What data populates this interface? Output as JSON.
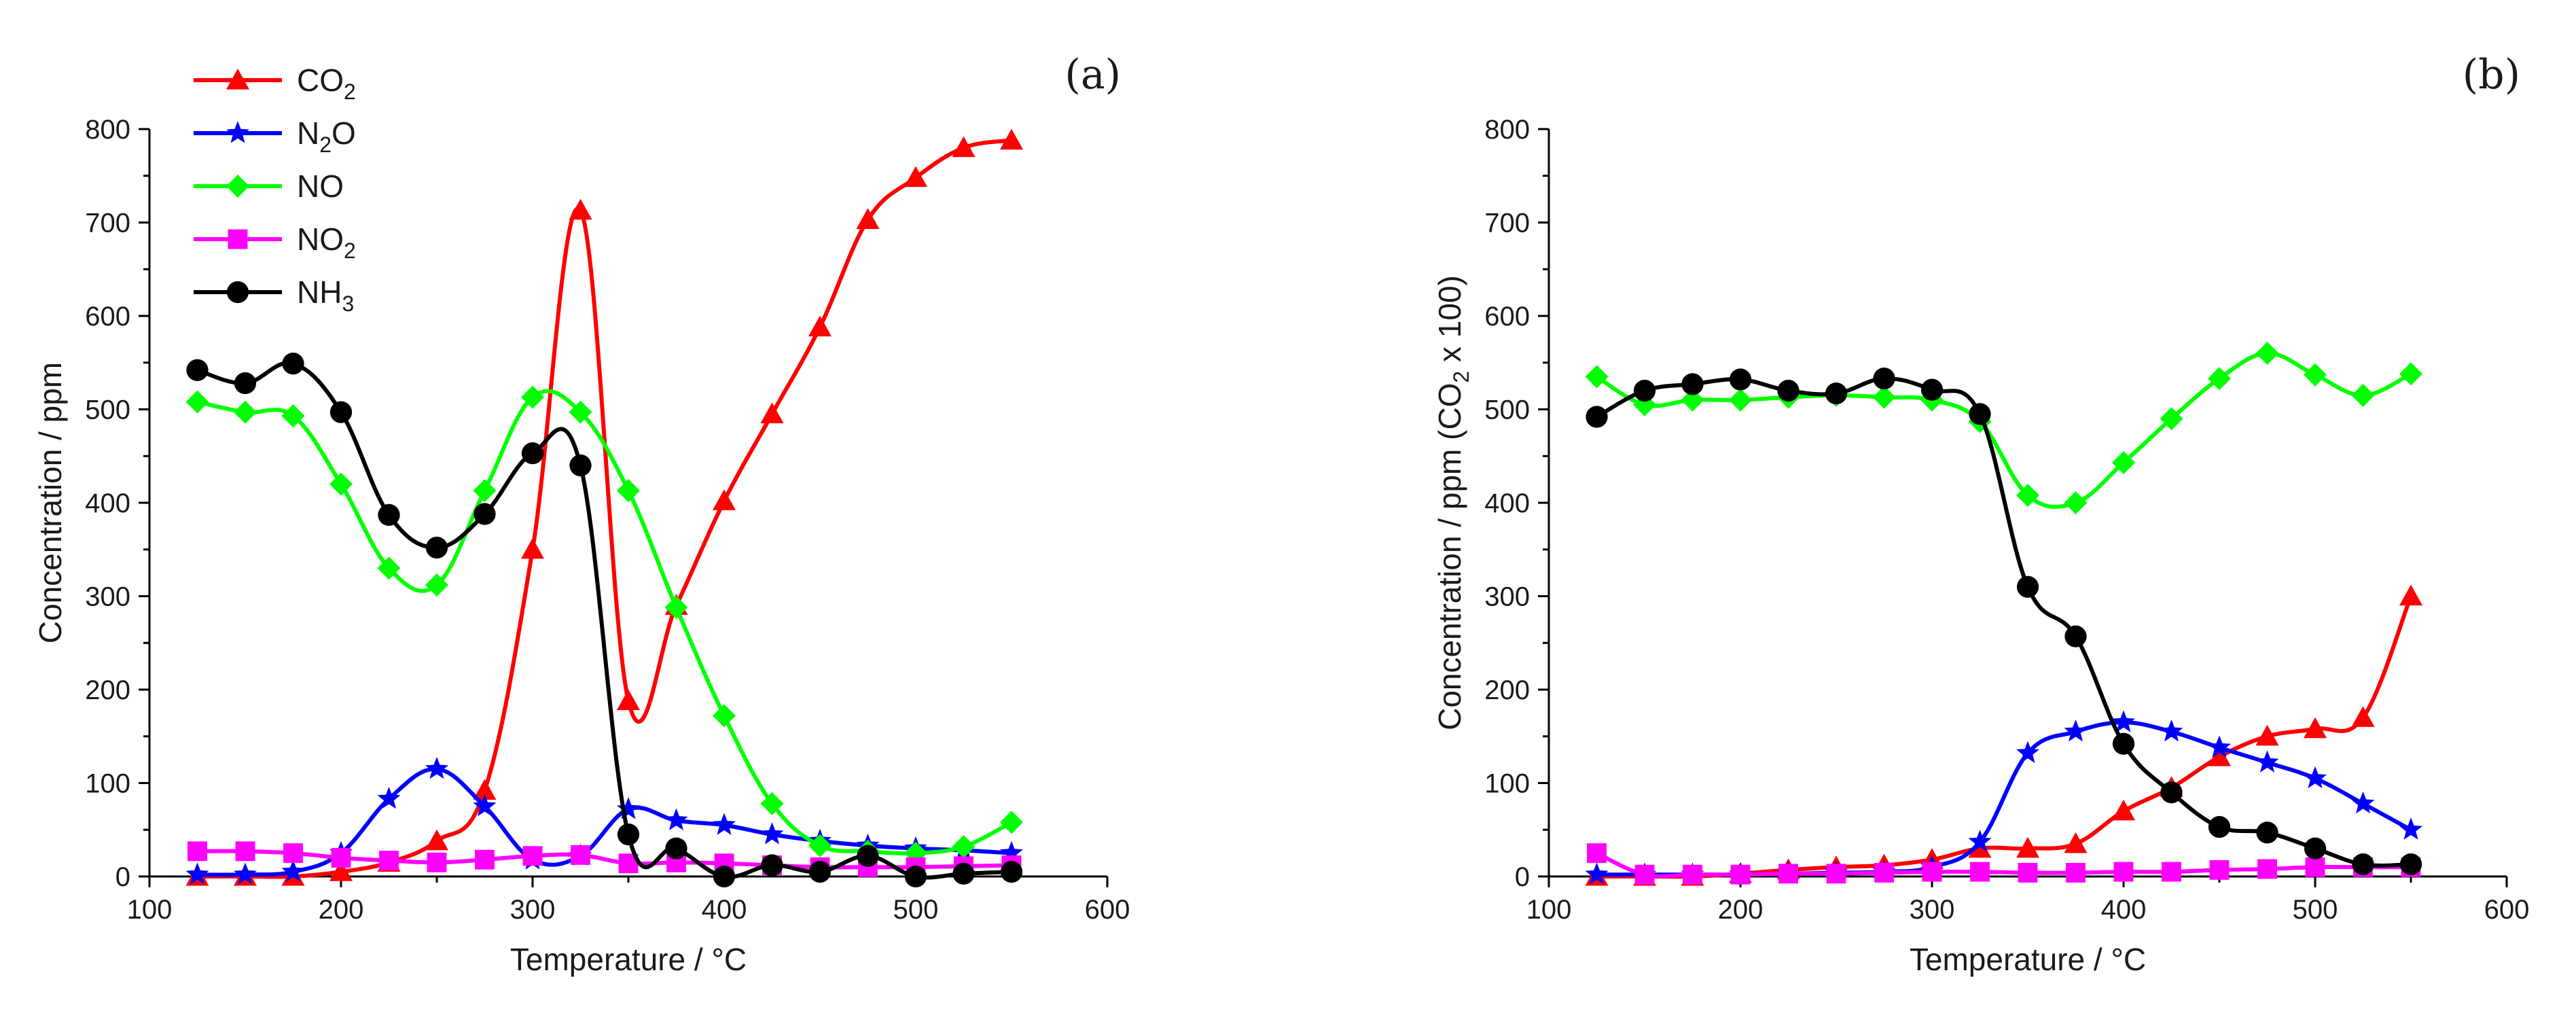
{
  "chart_data": [
    {
      "type": "line",
      "panel_label": "(a)",
      "xlabel": "Temperature / °C",
      "ylabel": "Concentration / ppm",
      "xlim": [
        100,
        600
      ],
      "ylim": [
        0,
        800
      ],
      "xticks": [
        100,
        200,
        300,
        400,
        500,
        600
      ],
      "yticks": [
        0,
        100,
        200,
        300,
        400,
        500,
        600,
        700,
        800
      ],
      "legend": "top-left",
      "series": [
        {
          "name": "CO2",
          "label_main": "CO",
          "label_sub": "2",
          "color": "#ff0000",
          "marker": "triangle",
          "x": [
            125,
            150,
            175,
            200,
            225,
            250,
            275,
            300,
            325,
            350,
            375,
            400,
            425,
            450,
            475,
            500,
            525,
            550
          ],
          "y": [
            0,
            0,
            0,
            5,
            15,
            38,
            92,
            350,
            713,
            188,
            290,
            402,
            495,
            588,
            703,
            748,
            780,
            788
          ]
        },
        {
          "name": "N2O",
          "label_main": "N",
          "label_sub": "2",
          "label_tail": "O",
          "color": "#0000ff",
          "marker": "star",
          "x": [
            125,
            150,
            175,
            200,
            225,
            250,
            275,
            300,
            325,
            350,
            375,
            400,
            425,
            450,
            475,
            500,
            525,
            550
          ],
          "y": [
            2,
            2,
            5,
            25,
            83,
            115,
            75,
            18,
            22,
            72,
            60,
            55,
            45,
            38,
            33,
            30,
            28,
            25
          ]
        },
        {
          "name": "NO",
          "label_main": "NO",
          "color": "#00ff00",
          "marker": "diamond",
          "x": [
            125,
            150,
            175,
            200,
            225,
            250,
            275,
            300,
            325,
            350,
            375,
            400,
            425,
            450,
            475,
            500,
            525,
            550
          ],
          "y": [
            508,
            497,
            493,
            420,
            330,
            312,
            413,
            513,
            497,
            413,
            288,
            172,
            78,
            33,
            27,
            25,
            32,
            58
          ]
        },
        {
          "name": "NO2",
          "label_main": "NO",
          "label_sub": "2",
          "color": "#ff00ff",
          "marker": "square",
          "x": [
            125,
            150,
            175,
            200,
            225,
            250,
            275,
            300,
            325,
            350,
            375,
            400,
            425,
            450,
            475,
            500,
            525,
            550
          ],
          "y": [
            27,
            27,
            25,
            20,
            17,
            15,
            18,
            22,
            23,
            14,
            15,
            14,
            12,
            10,
            10,
            10,
            11,
            12
          ]
        },
        {
          "name": "NH3",
          "label_main": "NH",
          "label_sub": "3",
          "color": "#000000",
          "marker": "circle",
          "x": [
            125,
            150,
            175,
            200,
            225,
            250,
            275,
            300,
            325,
            350,
            375,
            400,
            425,
            450,
            475,
            500,
            525,
            550
          ],
          "y": [
            542,
            528,
            549,
            497,
            387,
            352,
            388,
            453,
            440,
            45,
            30,
            0,
            12,
            5,
            22,
            0,
            3,
            5
          ]
        }
      ]
    },
    {
      "type": "line",
      "panel_label": "(b)",
      "xlabel": "Temperature / °C",
      "ylabel_pre": "Concentration / ppm (CO",
      "ylabel_sub": "2",
      "ylabel_post": " x 100)",
      "xlim": [
        100,
        600
      ],
      "ylim": [
        0,
        800
      ],
      "xticks": [
        100,
        200,
        300,
        400,
        500,
        600
      ],
      "yticks": [
        0,
        100,
        200,
        300,
        400,
        500,
        600,
        700,
        800
      ],
      "series": [
        {
          "name": "CO2",
          "color": "#ff0000",
          "marker": "triangle",
          "x": [
            125,
            150,
            175,
            200,
            225,
            250,
            275,
            300,
            325,
            350,
            375,
            400,
            425,
            450,
            475,
            500,
            525,
            550
          ],
          "y": [
            0,
            0,
            0,
            3,
            7,
            10,
            12,
            18,
            30,
            30,
            35,
            70,
            95,
            128,
            150,
            158,
            170,
            300
          ]
        },
        {
          "name": "N2O",
          "color": "#0000ff",
          "marker": "star",
          "x": [
            125,
            150,
            175,
            200,
            225,
            250,
            275,
            300,
            325,
            350,
            375,
            400,
            425,
            450,
            475,
            500,
            525,
            550
          ],
          "y": [
            2,
            2,
            2,
            2,
            3,
            4,
            5,
            10,
            37,
            132,
            155,
            165,
            155,
            138,
            122,
            105,
            78,
            50
          ]
        },
        {
          "name": "NO",
          "color": "#00ff00",
          "marker": "diamond",
          "x": [
            125,
            150,
            175,
            200,
            225,
            250,
            275,
            300,
            325,
            350,
            375,
            400,
            425,
            450,
            475,
            500,
            525,
            550
          ],
          "y": [
            535,
            505,
            510,
            510,
            513,
            515,
            513,
            510,
            487,
            408,
            400,
            443,
            490,
            533,
            560,
            537,
            515,
            538
          ]
        },
        {
          "name": "NO2",
          "color": "#ff00ff",
          "marker": "square",
          "x": [
            125,
            150,
            175,
            200,
            225,
            250,
            275,
            300,
            325,
            350,
            375,
            400,
            425,
            450,
            475,
            500,
            525,
            550
          ],
          "y": [
            25,
            2,
            2,
            2,
            3,
            3,
            4,
            5,
            5,
            4,
            4,
            5,
            5,
            7,
            8,
            10,
            10,
            10
          ]
        },
        {
          "name": "NH3",
          "color": "#000000",
          "marker": "circle",
          "x": [
            125,
            150,
            175,
            200,
            225,
            250,
            275,
            300,
            325,
            350,
            375,
            400,
            425,
            450,
            475,
            500,
            525,
            550
          ],
          "y": [
            492,
            520,
            527,
            532,
            520,
            517,
            533,
            521,
            495,
            310,
            257,
            142,
            90,
            53,
            47,
            30,
            13,
            13
          ]
        }
      ]
    }
  ]
}
